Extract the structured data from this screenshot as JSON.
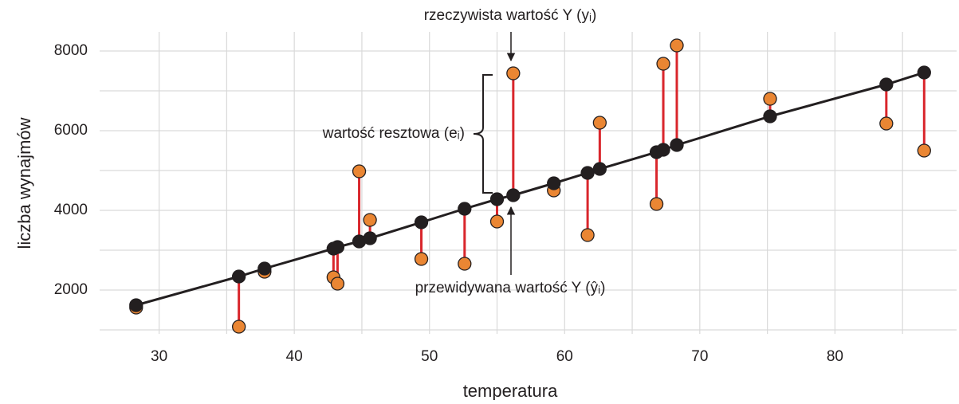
{
  "chart_data": {
    "type": "scatter",
    "xlabel": "temperatura",
    "ylabel": "liczba wynajmów",
    "annotations": [
      "rzeczywista wartość  Y (yᵢ)",
      "wartość resztowa (eᵢ)",
      "przewidywana wartość Y (ŷᵢ)"
    ],
    "x": [
      28.3,
      35.9,
      37.8,
      42.9,
      43.2,
      44.8,
      45.6,
      49.4,
      52.6,
      55.0,
      56.2,
      59.2,
      61.7,
      62.6,
      66.8,
      67.3,
      68.3,
      75.2,
      83.8,
      86.6
    ],
    "series": [
      {
        "color": "#ea8633",
        "values": [
          1560,
          1080,
          2460,
          2320,
          2160,
          4980,
          3760,
          2780,
          2660,
          3720,
          7440,
          4500,
          3380,
          6200,
          4160,
          7680,
          8140,
          6800,
          6180,
          5500
        ]
      },
      {
        "color": "#231f20",
        "values": [
          1620,
          2340,
          2540,
          3040,
          3080,
          3220,
          3300,
          3700,
          4040,
          4280,
          4380,
          4680,
          4940,
          5040,
          5460,
          5520,
          5640,
          6360,
          7160,
          7460
        ]
      }
    ],
    "residual_color": "#d9262c",
    "xlim": [
      25.6,
      89
    ],
    "xticks": [
      30,
      40,
      50,
      60,
      70,
      80
    ],
    "xminor": [
      35,
      45,
      55,
      65,
      75,
      85
    ],
    "ylim": [
      900,
      8480
    ],
    "yticks": [
      2000,
      4000,
      6000,
      8000
    ],
    "yminor": [
      1000,
      3000,
      5000,
      7000
    ],
    "grid": true
  }
}
